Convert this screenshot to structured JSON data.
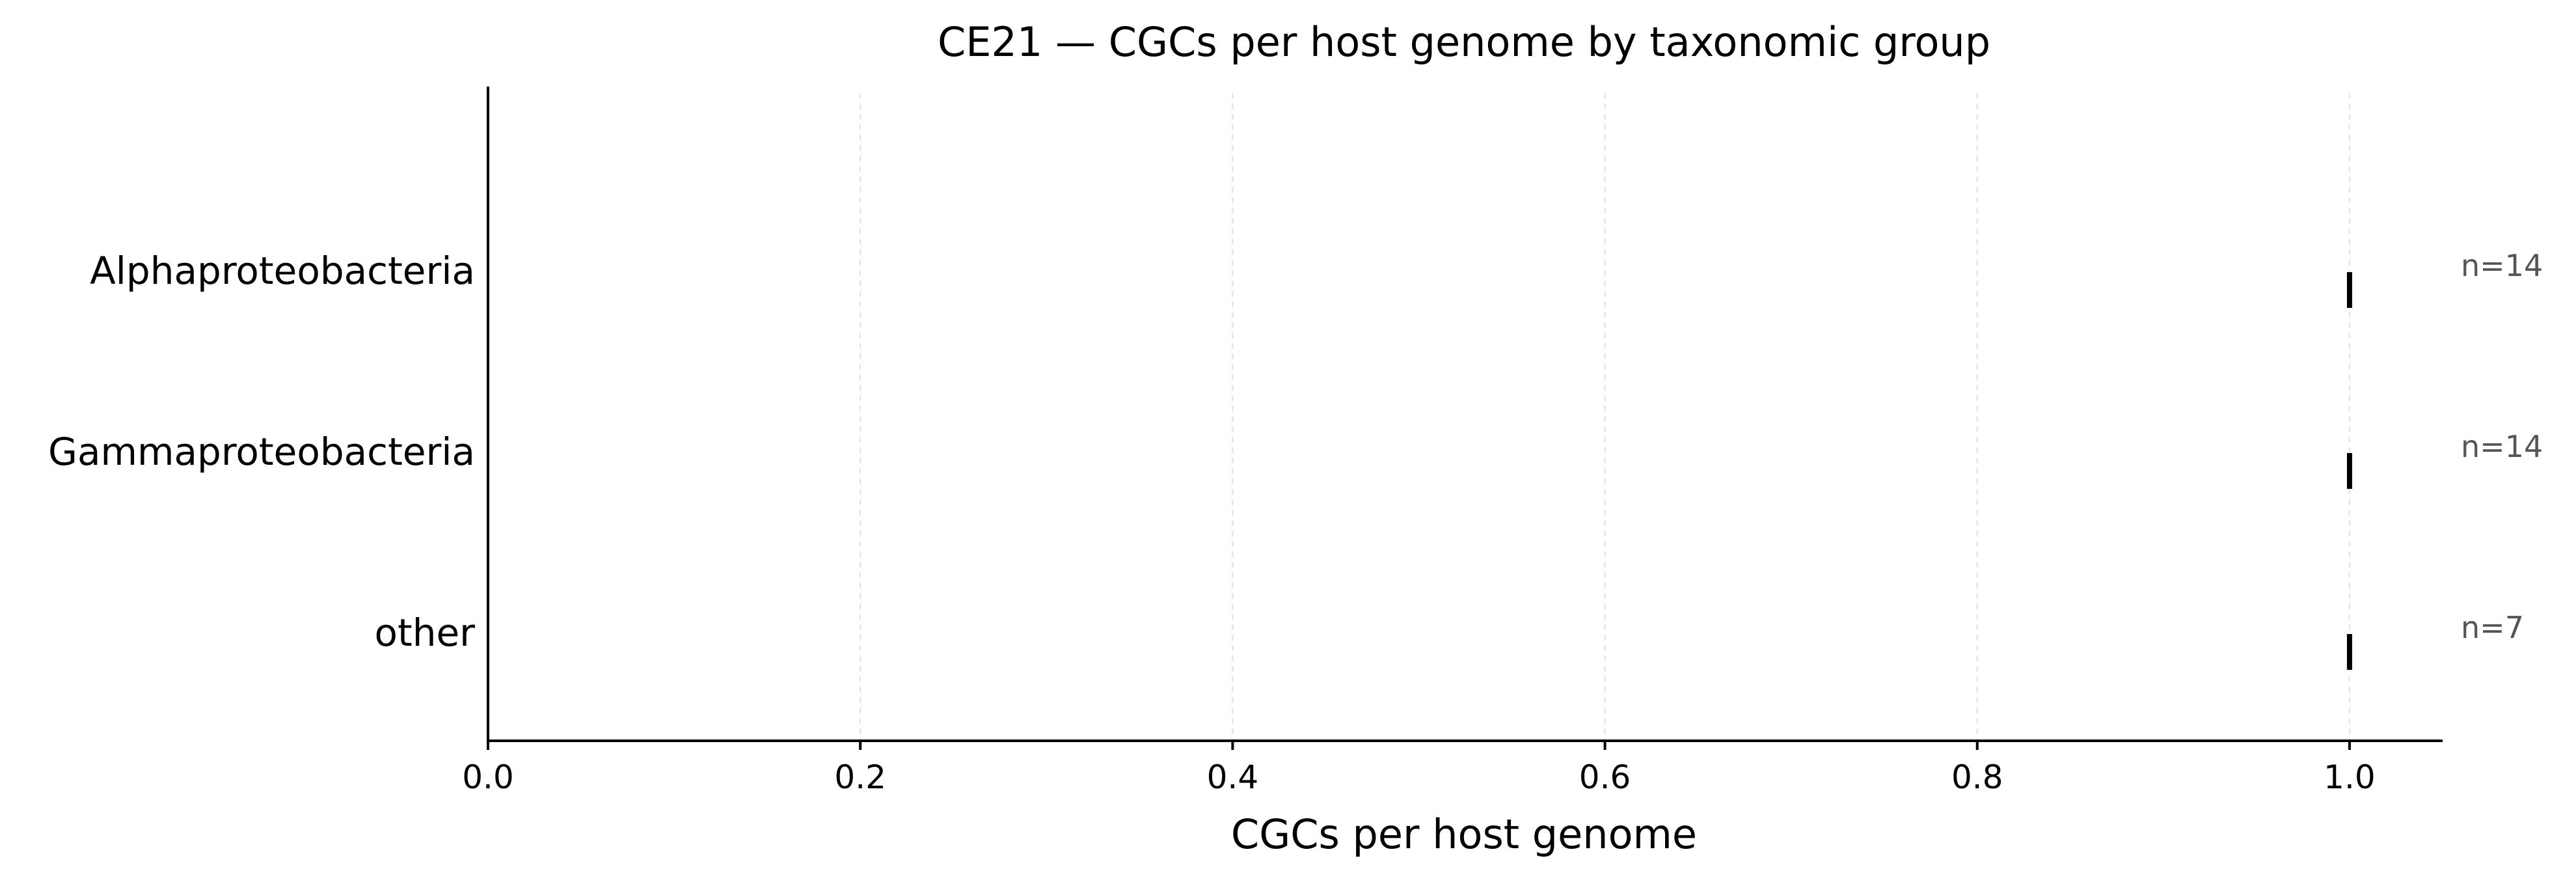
{
  "chart_data": {
    "type": "scatter",
    "title": "CE21 — CGCs per host genome by taxonomic group",
    "xlabel": "CGCs per host genome",
    "ylabel": "",
    "xlim": [
      0.0,
      1.05
    ],
    "xticks": [
      0.0,
      0.2,
      0.4,
      0.6,
      0.8,
      1.0
    ],
    "xtick_labels": [
      "0.0",
      "0.2",
      "0.4",
      "0.6",
      "0.8",
      "1.0"
    ],
    "grid": "vertical dashed",
    "categories": [
      "Alphaproteobacteria",
      "Gammaproteobacteria",
      "other"
    ],
    "values": [
      1.0,
      1.0,
      1.0
    ],
    "counts": [
      "n=14",
      "n=14",
      "n=7"
    ],
    "colors": {
      "marker": "#000000",
      "count_text": "#555555",
      "axis": "#000000",
      "grid": "#e6e6e6"
    }
  }
}
